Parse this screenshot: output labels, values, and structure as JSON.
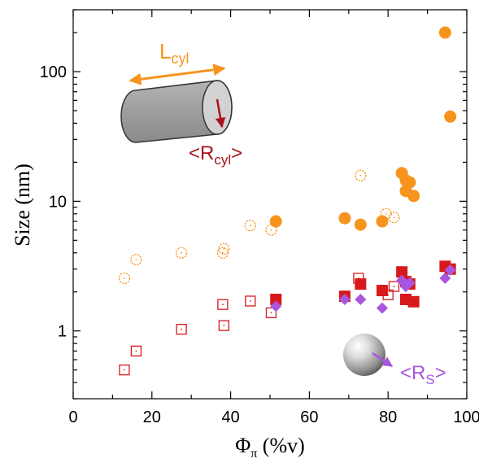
{
  "chart_data": {
    "type": "scatter",
    "title": "",
    "xlabel": {
      "main": "Φ",
      "sub": "π",
      "unit": " (%v)"
    },
    "ylabel": "Size (nm)",
    "xlim": [
      0,
      100
    ],
    "ylim": [
      0.3,
      300
    ],
    "yscale": "log",
    "xticks": [
      0,
      20,
      40,
      60,
      80,
      100
    ],
    "yticks": [
      1,
      10,
      100
    ],
    "grid": false,
    "legend": "none",
    "series": [
      {
        "marker": "circle",
        "filled": false,
        "color": "#f7941d",
        "points": [
          [
            13,
            2.55
          ],
          [
            16,
            3.55
          ],
          [
            27.5,
            4.0
          ],
          [
            38,
            4.0
          ],
          [
            38.3,
            4.3
          ],
          [
            45,
            6.5
          ],
          [
            50.3,
            6.0
          ],
          [
            73,
            15.8
          ],
          [
            79.5,
            8.0
          ],
          [
            81.5,
            7.5
          ]
        ]
      },
      {
        "marker": "circle",
        "filled": true,
        "color": "#f7941d",
        "points": [
          [
            51.5,
            7.0
          ],
          [
            69,
            7.4
          ],
          [
            73,
            6.6
          ],
          [
            78.5,
            7.0
          ],
          [
            83.5,
            16.5
          ],
          [
            84.5,
            14.5
          ],
          [
            85.5,
            14.0
          ],
          [
            84.5,
            12.0
          ],
          [
            86.5,
            11.0
          ],
          [
            94.5,
            200
          ],
          [
            95.8,
            45
          ]
        ]
      },
      {
        "marker": "square",
        "filled": false,
        "color": "#d7191c",
        "points": [
          [
            13,
            0.5
          ],
          [
            16,
            0.7
          ],
          [
            27.5,
            1.03
          ],
          [
            38,
            1.6
          ],
          [
            38.3,
            1.1
          ],
          [
            45,
            1.7
          ],
          [
            50.3,
            1.38
          ],
          [
            72.5,
            2.55
          ],
          [
            80,
            1.9
          ],
          [
            81.5,
            2.2
          ]
        ]
      },
      {
        "marker": "square",
        "filled": true,
        "color": "#d7191c",
        "points": [
          [
            51.5,
            1.75
          ],
          [
            69,
            1.85
          ],
          [
            73,
            2.3
          ],
          [
            78.5,
            2.05
          ],
          [
            83.5,
            2.85
          ],
          [
            84.5,
            1.75
          ],
          [
            85.5,
            2.3
          ],
          [
            84.5,
            2.4
          ],
          [
            86.5,
            1.68
          ],
          [
            94.5,
            3.15
          ],
          [
            95.8,
            3.0
          ]
        ]
      },
      {
        "marker": "diamond",
        "filled": true,
        "color": "#a855e0",
        "points": [
          [
            51.5,
            1.55
          ],
          [
            69,
            1.75
          ],
          [
            73,
            1.75
          ],
          [
            78.5,
            1.5
          ],
          [
            83.5,
            2.45
          ],
          [
            84.5,
            2.2
          ],
          [
            85.5,
            2.35
          ],
          [
            94.5,
            2.55
          ],
          [
            95.8,
            2.95
          ]
        ]
      }
    ],
    "annotations": {
      "cylinder_length": {
        "main": "L",
        "sub": "cyl",
        "color": "#f7941d"
      },
      "cylinder_radius": {
        "prefix": "<R",
        "sub": "cyl",
        "suffix": ">",
        "color": "#a8121c"
      },
      "sphere_radius": {
        "prefix": "<R",
        "sub": "S",
        "suffix": ">",
        "color": "#a855e0"
      }
    }
  }
}
